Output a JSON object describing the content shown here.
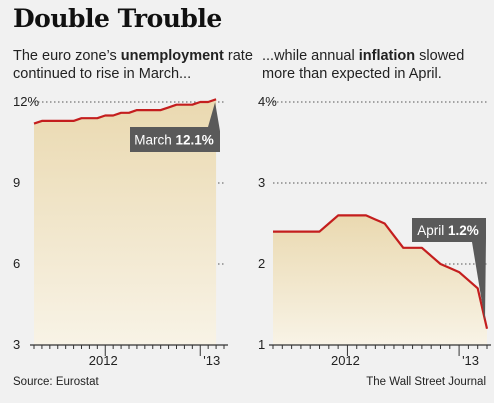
{
  "title": "Double Trouble",
  "subtitle_left": {
    "pre": "The euro zone’s ",
    "bold": "unemployment",
    "post": " rate continued to rise in March..."
  },
  "subtitle_right": {
    "pre": "...while annual ",
    "bold": "inflation",
    "post": " slowed more than expected in April."
  },
  "source": "Source: Eurostat",
  "credit": "The Wall Street Journal",
  "colors": {
    "line": "#c41e1e",
    "fill_top": "#ead9b0",
    "fill_bottom": "#f8f3e6",
    "callout_bg": "#5a5a5a"
  },
  "chart_data": [
    {
      "type": "area",
      "title": "",
      "ylabel": "",
      "ylim": [
        3,
        12
      ],
      "ytick_labels": [
        "12%",
        "9",
        "6",
        "3"
      ],
      "xtick_labels": [
        "2012",
        "'13"
      ],
      "grid": true,
      "annotation": {
        "text": "March ",
        "bold": "12.1%"
      },
      "x": [
        "2011-04",
        "2011-05",
        "2011-06",
        "2011-07",
        "2011-08",
        "2011-09",
        "2011-10",
        "2011-11",
        "2011-12",
        "2012-01",
        "2012-02",
        "2012-03",
        "2012-04",
        "2012-05",
        "2012-06",
        "2012-07",
        "2012-08",
        "2012-09",
        "2012-10",
        "2012-11",
        "2012-12",
        "2013-01",
        "2013-02",
        "2013-03"
      ],
      "values": [
        11.2,
        11.3,
        11.3,
        11.3,
        11.3,
        11.3,
        11.4,
        11.4,
        11.4,
        11.5,
        11.5,
        11.6,
        11.6,
        11.7,
        11.7,
        11.7,
        11.7,
        11.8,
        11.9,
        11.9,
        11.9,
        12.0,
        12.0,
        12.1
      ]
    },
    {
      "type": "area",
      "title": "",
      "ylabel": "",
      "ylim": [
        1,
        4
      ],
      "ytick_labels": [
        "4%",
        "3",
        "2",
        "1"
      ],
      "xtick_labels": [
        "2012",
        "'13"
      ],
      "grid": true,
      "annotation": {
        "text": "April ",
        "bold": "1.2%"
      },
      "x": [
        "2011-05",
        "2011-06",
        "2011-07",
        "2011-08",
        "2011-09",
        "2011-10",
        "2011-11",
        "2011-12",
        "2012-01",
        "2012-02",
        "2012-03",
        "2012-04",
        "2012-05",
        "2012-06",
        "2012-07",
        "2012-08",
        "2012-09",
        "2012-10",
        "2012-11",
        "2012-12",
        "2013-01",
        "2013-02",
        "2013-03",
        "2013-04"
      ],
      "values": [
        2.4,
        2.4,
        2.4,
        2.4,
        2.4,
        2.4,
        2.5,
        2.6,
        2.6,
        2.6,
        2.6,
        2.55,
        2.5,
        2.35,
        2.2,
        2.2,
        2.2,
        2.1,
        2.0,
        1.95,
        1.9,
        1.8,
        1.7,
        1.2
      ]
    }
  ]
}
